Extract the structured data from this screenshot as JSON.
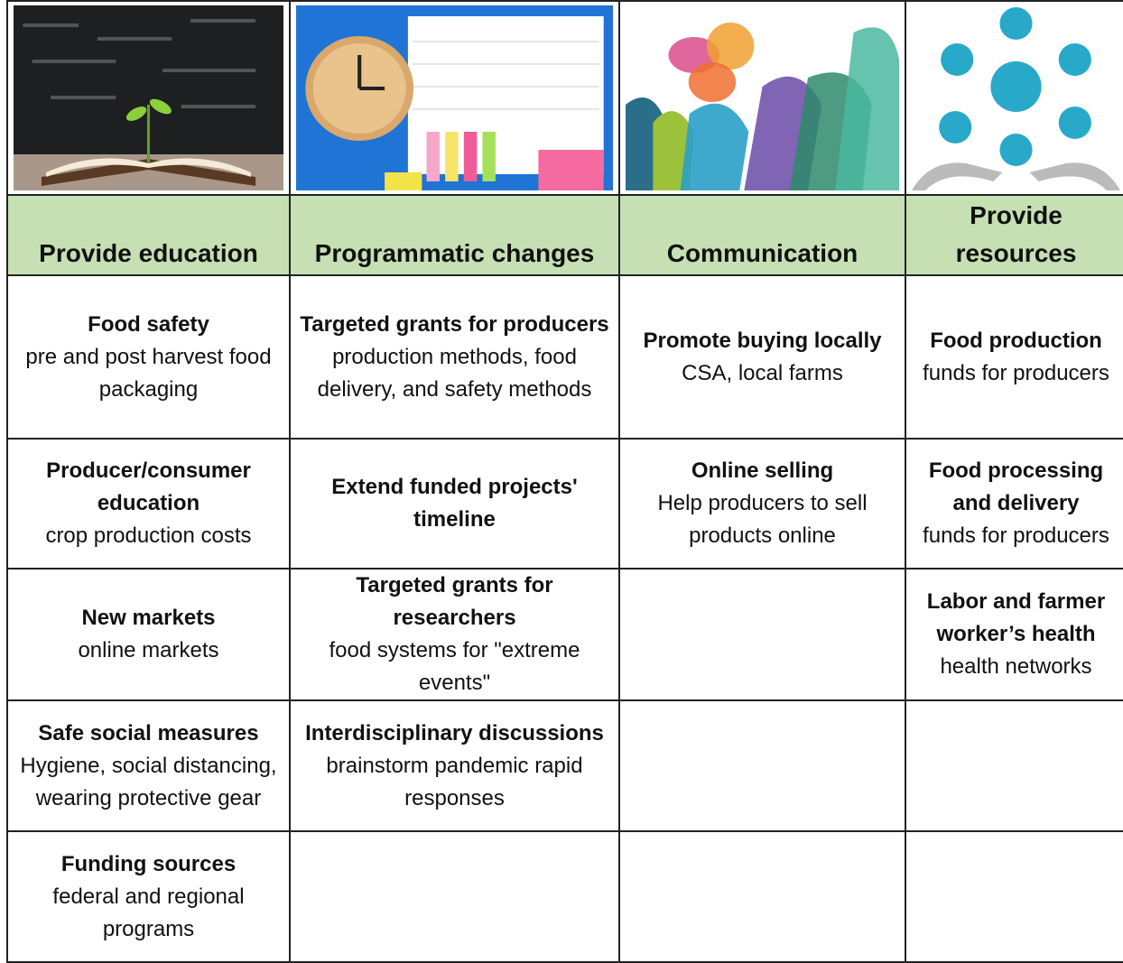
{
  "columns": [
    {
      "title": "Provide education",
      "items": [
        {
          "heading": "Food safety",
          "text": "pre and post harvest food packaging"
        },
        {
          "heading": "Producer/consumer education",
          "text": "crop production costs"
        },
        {
          "heading": "New markets",
          "text": "online markets"
        },
        {
          "heading": "Safe social measures",
          "text": "Hygiene, social distancing, wearing protective gear"
        },
        {
          "heading": "Funding sources",
          "text": "federal and regional programs"
        }
      ]
    },
    {
      "title": "Programmatic changes",
      "items": [
        {
          "heading": "Targeted grants for producers",
          "text": "production methods, food delivery, and safety methods"
        },
        {
          "heading": "Extend funded projects' timeline"
        },
        {
          "heading": "Targeted grants for researchers",
          "text": "food systems for \"extreme events\""
        },
        {
          "heading": "Interdisciplinary discussions",
          "text": "brainstorm pandemic rapid responses"
        }
      ]
    },
    {
      "title": "Communication",
      "items": [
        {
          "heading": "Promote buying locally",
          "text": "CSA, local farms"
        },
        {
          "heading": "Online selling",
          "text": "Help producers to sell products online"
        }
      ]
    },
    {
      "title": "Provide resources",
      "items": [
        {
          "heading": "Food production",
          "text": "funds for producers"
        },
        {
          "heading": "Food processing and delivery",
          "text": "funds for producers"
        },
        {
          "heading": "Labor and farmer worker’s health",
          "text": "health networks"
        }
      ]
    }
  ]
}
